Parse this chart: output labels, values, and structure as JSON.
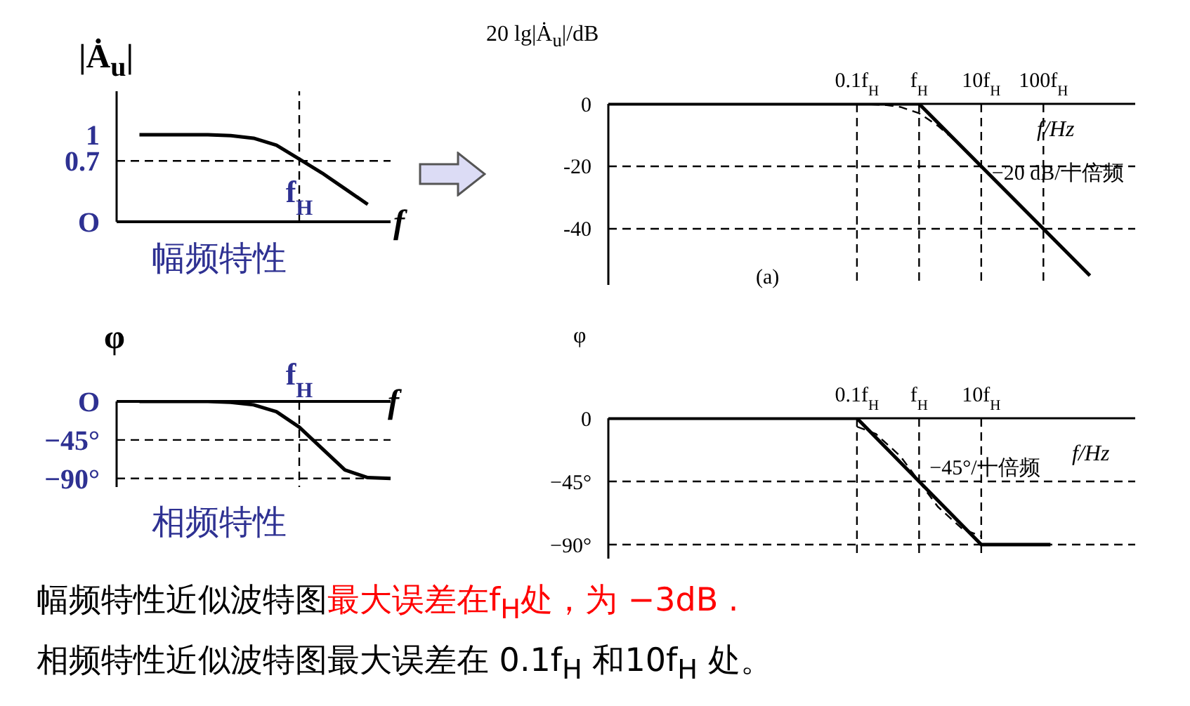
{
  "chart_data": [
    {
      "type": "line",
      "ylabel": "|Ȧ$_{u}$|",
      "xlabel": "f",
      "subtitle": "幅频特性",
      "marker": "none",
      "categories": [
        null,
        null,
        null,
        null,
        null,
        null,
        null,
        null,
        "f$_{H}$",
        null,
        null,
        null,
        null
      ],
      "series": [
        {
          "color": "#000000",
          "values": [
            null,
            1,
            1,
            1,
            1,
            0.99,
            0.96,
            0.88,
            0.72,
            0.56,
            0.38,
            0.2,
            null
          ]
        }
      ],
      "ylim": [
        0,
        1.5
      ],
      "yticks": [
        {
          "value": 0,
          "label": "O"
        },
        0.7,
        1
      ],
      "ref_lines": [
        {
          "axis": "y",
          "value": 0.7,
          "line_style": "dashed"
        },
        {
          "axis": "x",
          "value": "f$_{H}$",
          "line_style": "dashed"
        }
      ]
    },
    {
      "type": "line",
      "ylabel": "φ",
      "xlabel": "f",
      "subtitle": "相频特性",
      "marker": "none",
      "categories": [
        null,
        null,
        null,
        null,
        null,
        null,
        null,
        null,
        "f$_{H}$",
        null,
        null,
        null,
        null
      ],
      "series": [
        {
          "color": "#000000",
          "values": [
            null,
            0,
            0,
            0,
            0,
            -1,
            -4,
            -12,
            -30,
            -55,
            -80,
            -89,
            -90
          ]
        }
      ],
      "ylim": [
        -100,
        0
      ],
      "yticks": [
        {
          "value": 0,
          "label": "O"
        },
        {
          "value": -45,
          "label": "−45°"
        },
        {
          "value": -90,
          "label": "−90°"
        }
      ],
      "ref_lines": [
        {
          "axis": "y",
          "value": -45,
          "line_style": "dashed"
        },
        {
          "axis": "y",
          "value": -90,
          "line_style": "dashed"
        },
        {
          "axis": "x",
          "value": "f$_{H}$",
          "line_style": "dashed"
        }
      ]
    },
    {
      "type": "line",
      "ylabel": "20 lg|Ȧ$_{u}$|/dB",
      "xlabel": "f/Hz",
      "log": "x",
      "marker": "none",
      "xlim": [
        1e-05,
        3000
      ],
      "xticks": [
        {
          "value": 0.1,
          "label": "0.1f$_{H}$"
        },
        {
          "value": 1,
          "label": "f$_{H}$"
        },
        {
          "value": 10,
          "label": "10f$_{H}$"
        },
        {
          "value": 100,
          "label": "100f$_{H}$"
        }
      ],
      "ylim": [
        -58,
        0
      ],
      "yticks": [
        0,
        -20,
        -40
      ],
      "series": [
        {
          "color": "#000000",
          "line_style": "solid",
          "x": [
            1e-05,
            1,
            560
          ],
          "values": [
            0,
            0,
            -55
          ]
        },
        {
          "color": "#000000",
          "line_style": "dashed",
          "x": [
            0.1,
            0.3,
            0.5,
            1,
            2,
            3,
            5,
            10
          ],
          "values": [
            0,
            -0.4,
            -1,
            -3,
            -7,
            -10,
            -14,
            -20
          ]
        }
      ],
      "ref_lines": [
        {
          "axis": "x",
          "value": 0.1,
          "line_style": "dashed"
        },
        {
          "axis": "x",
          "value": 1,
          "line_style": "dashed"
        },
        {
          "axis": "x",
          "value": 10,
          "line_style": "dashed"
        },
        {
          "axis": "x",
          "value": 100,
          "line_style": "dashed"
        },
        {
          "axis": "y",
          "value": -20,
          "line_style": "dashed"
        },
        {
          "axis": "y",
          "value": -40,
          "line_style": "dashed"
        }
      ],
      "annotations": [
        {
          "text": "−20 dB/十倍频",
          "x": 12,
          "y": -22
        },
        "(a)"
      ]
    },
    {
      "type": "line",
      "ylabel": "φ",
      "xlabel": "f/Hz",
      "log": "x",
      "marker": "none",
      "xlim": [
        1e-05,
        3000
      ],
      "xticks": [
        {
          "value": 0.1,
          "label": "0.1f$_{H}$"
        },
        {
          "value": 1,
          "label": "f$_{H}$"
        },
        {
          "value": 10,
          "label": "10f$_{H}$"
        }
      ],
      "ylim": [
        -100,
        0
      ],
      "yticks": [
        0,
        {
          "value": -45,
          "label": "−45°"
        },
        {
          "value": -90,
          "label": "−90°"
        }
      ],
      "series": [
        {
          "color": "#000000",
          "line_style": "solid",
          "x": [
            1e-05,
            0.1,
            10,
            130
          ],
          "values": [
            0,
            0,
            -90,
            -90
          ]
        },
        {
          "color": "#000000",
          "line_style": "dashed",
          "x": [
            0.1,
            0.2,
            0.5,
            1,
            2,
            5,
            10
          ],
          "values": [
            -6,
            -11,
            -27,
            -45,
            -63,
            -79,
            -84
          ]
        }
      ],
      "ref_lines": [
        {
          "axis": "x",
          "value": 0.1,
          "line_style": "dashed"
        },
        {
          "axis": "x",
          "value": 1,
          "line_style": "dashed"
        },
        {
          "axis": "x",
          "value": 10,
          "line_style": "dashed"
        },
        {
          "axis": "y",
          "value": -45,
          "line_style": "dashed"
        },
        {
          "axis": "y",
          "value": -90,
          "line_style": "dashed"
        }
      ],
      "annotations": [
        {
          "text": "−45°/十倍频",
          "x": 1.2,
          "y": -35
        }
      ]
    },
    {
      "type": "other",
      "annotations": [
        "幅频特性近似波特图",
        "最大误差在f$_{H}$处，为 −3dB .",
        "相频特性近似波特图最大误差在 0.1f$_{H}$ 和10f$_{H}$ 处。"
      ],
      "colors": [
        "#000000",
        "#ff0000",
        "#000000"
      ]
    }
  ]
}
